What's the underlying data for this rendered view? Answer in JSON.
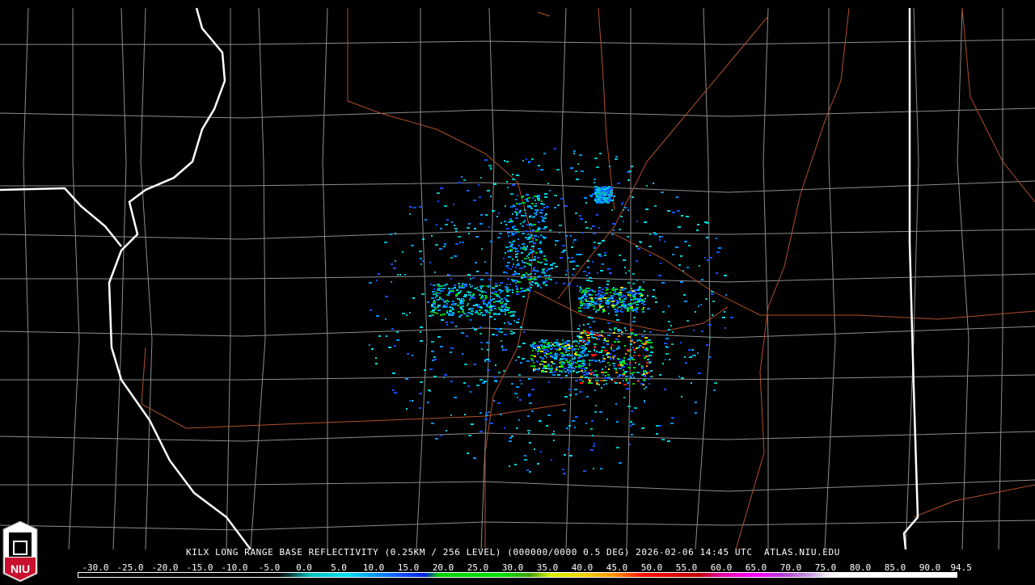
{
  "product_title": "KILX LONG RANGE BASE REFLECTIVITY (0.25KM / 256 LEVEL) (000000/0000 0.5 DEG) 2026-02-06 14:45 UTC  ATLAS.NIU.EDU",
  "logo_text": "NIU",
  "legend": {
    "labels": [
      "-30.0",
      "-25.0",
      "-20.0",
      "-15.0",
      "-10.0",
      "-5.0",
      "0.0",
      "5.0",
      "10.0",
      "15.0",
      "20.0",
      "25.0",
      "30.0",
      "35.0",
      "40.0",
      "45.0",
      "50.0",
      "55.0",
      "60.0",
      "65.0",
      "70.0",
      "75.0",
      "80.0",
      "85.0",
      "90.0",
      "94.5"
    ],
    "colors": {
      "state_border": "#ffffff",
      "county_border": "#8c8c8c",
      "highway": "#b0502a",
      "background": "#000000"
    }
  },
  "echo_colors": [
    "#00b8b8",
    "#00d8e8",
    "#0090ff",
    "#1050ff",
    "#00cc00",
    "#00ee00",
    "#f0e000",
    "#ff8800",
    "#ff1010"
  ]
}
